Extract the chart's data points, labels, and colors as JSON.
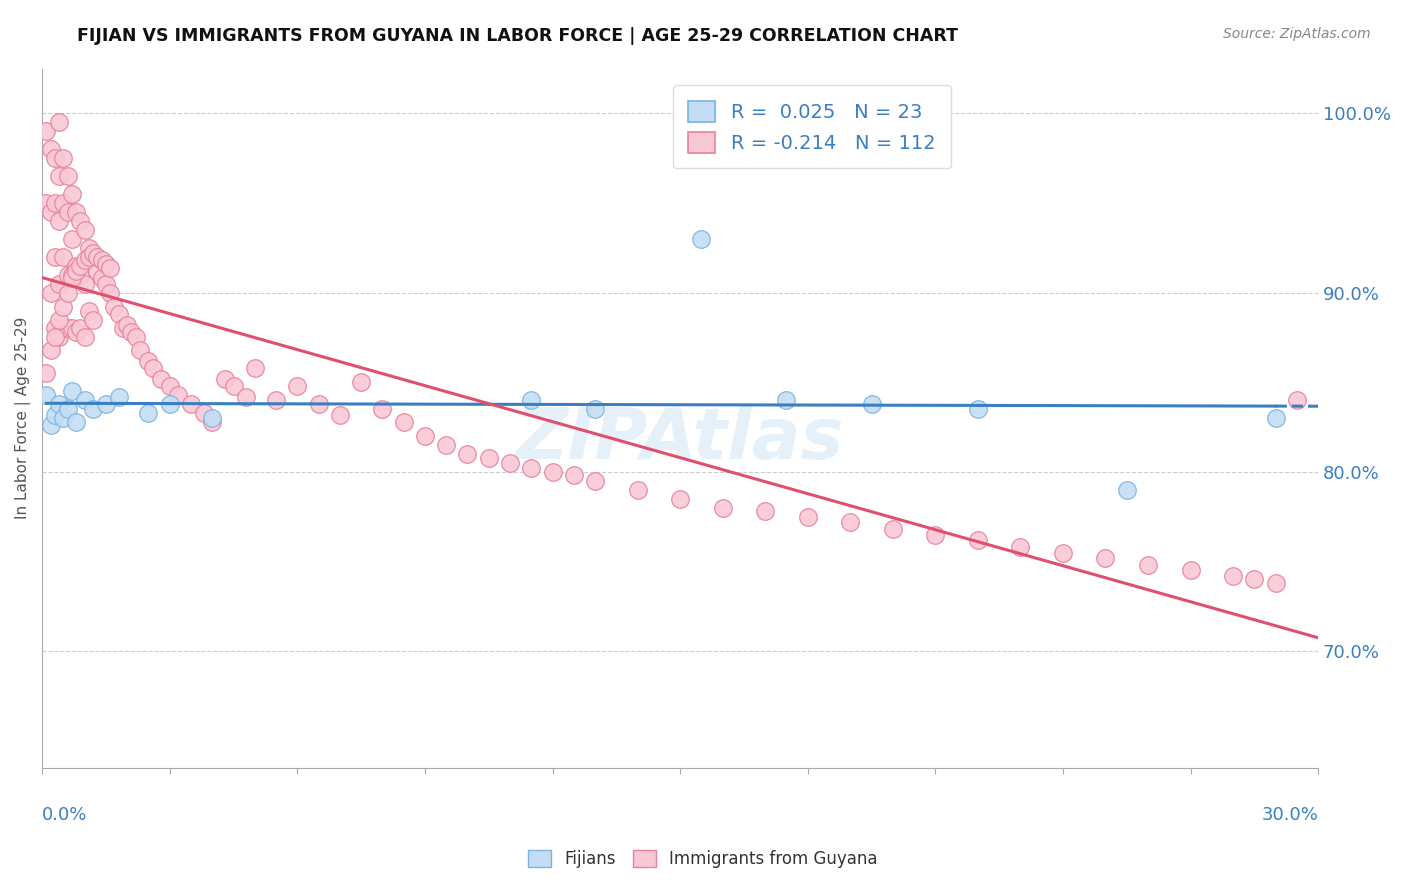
{
  "title": "FIJIAN VS IMMIGRANTS FROM GUYANA IN LABOR FORCE | AGE 25-29 CORRELATION CHART",
  "source": "Source: ZipAtlas.com",
  "ylabel": "In Labor Force | Age 25-29",
  "right_yticks": [
    70.0,
    80.0,
    90.0,
    100.0
  ],
  "xmin": 0.0,
  "xmax": 0.3,
  "ymin": 0.635,
  "ymax": 1.025,
  "fijian_color": "#c5ddf4",
  "fijian_edge_color": "#7ab3e0",
  "guyana_color": "#f9c8d5",
  "guyana_edge_color": "#e8829a",
  "trend_fijian_color": "#3a7fc1",
  "trend_guyana_color": "#e0506e",
  "legend_fijian_R": 0.025,
  "legend_fijian_N": 23,
  "legend_guyana_R": -0.214,
  "legend_guyana_N": 112,
  "fijian_x": [
    0.001,
    0.002,
    0.003,
    0.004,
    0.005,
    0.006,
    0.007,
    0.008,
    0.01,
    0.012,
    0.015,
    0.018,
    0.025,
    0.03,
    0.04,
    0.115,
    0.13,
    0.155,
    0.175,
    0.195,
    0.22,
    0.255,
    0.29
  ],
  "fijian_y": [
    0.843,
    0.826,
    0.832,
    0.838,
    0.83,
    0.835,
    0.845,
    0.828,
    0.84,
    0.835,
    0.838,
    0.842,
    0.833,
    0.838,
    0.83,
    0.84,
    0.835,
    0.93,
    0.84,
    0.838,
    0.835,
    0.79,
    0.83
  ],
  "guyana_x": [
    0.001,
    0.001,
    0.002,
    0.002,
    0.002,
    0.003,
    0.003,
    0.003,
    0.003,
    0.004,
    0.004,
    0.004,
    0.004,
    0.004,
    0.005,
    0.005,
    0.005,
    0.005,
    0.006,
    0.006,
    0.006,
    0.006,
    0.007,
    0.007,
    0.007,
    0.007,
    0.008,
    0.008,
    0.008,
    0.009,
    0.009,
    0.009,
    0.01,
    0.01,
    0.01,
    0.011,
    0.011,
    0.012,
    0.012,
    0.013,
    0.014,
    0.015,
    0.016,
    0.017,
    0.018,
    0.019,
    0.02,
    0.021,
    0.022,
    0.023,
    0.025,
    0.026,
    0.028,
    0.03,
    0.032,
    0.035,
    0.038,
    0.04,
    0.043,
    0.045,
    0.048,
    0.05,
    0.055,
    0.06,
    0.065,
    0.07,
    0.075,
    0.08,
    0.085,
    0.09,
    0.095,
    0.1,
    0.105,
    0.11,
    0.115,
    0.12,
    0.125,
    0.13,
    0.14,
    0.15,
    0.16,
    0.17,
    0.18,
    0.19,
    0.2,
    0.21,
    0.22,
    0.23,
    0.24,
    0.25,
    0.26,
    0.27,
    0.28,
    0.285,
    0.29,
    0.295,
    0.001,
    0.002,
    0.003,
    0.004,
    0.005,
    0.006,
    0.007,
    0.008,
    0.009,
    0.01,
    0.011,
    0.012,
    0.013,
    0.014,
    0.015,
    0.016
  ],
  "guyana_y": [
    0.99,
    0.95,
    0.98,
    0.945,
    0.9,
    0.975,
    0.95,
    0.92,
    0.88,
    0.995,
    0.965,
    0.94,
    0.905,
    0.875,
    0.975,
    0.95,
    0.92,
    0.88,
    0.965,
    0.945,
    0.91,
    0.88,
    0.955,
    0.93,
    0.91,
    0.88,
    0.945,
    0.915,
    0.878,
    0.94,
    0.91,
    0.88,
    0.935,
    0.905,
    0.875,
    0.925,
    0.89,
    0.92,
    0.885,
    0.912,
    0.908,
    0.905,
    0.9,
    0.892,
    0.888,
    0.88,
    0.882,
    0.878,
    0.875,
    0.868,
    0.862,
    0.858,
    0.852,
    0.848,
    0.843,
    0.838,
    0.833,
    0.828,
    0.852,
    0.848,
    0.842,
    0.858,
    0.84,
    0.848,
    0.838,
    0.832,
    0.85,
    0.835,
    0.828,
    0.82,
    0.815,
    0.81,
    0.808,
    0.805,
    0.802,
    0.8,
    0.798,
    0.795,
    0.79,
    0.785,
    0.78,
    0.778,
    0.775,
    0.772,
    0.768,
    0.765,
    0.762,
    0.758,
    0.755,
    0.752,
    0.748,
    0.745,
    0.742,
    0.74,
    0.738,
    0.84,
    0.855,
    0.868,
    0.875,
    0.885,
    0.892,
    0.9,
    0.908,
    0.912,
    0.915,
    0.918,
    0.92,
    0.922,
    0.92,
    0.918,
    0.916,
    0.914
  ]
}
